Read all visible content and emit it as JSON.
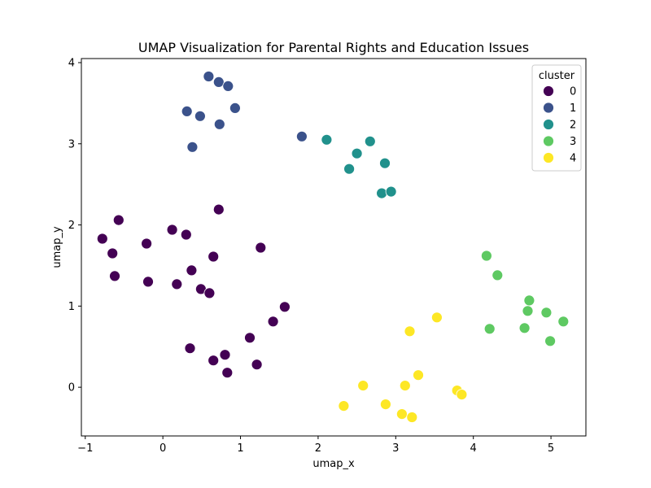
{
  "chart_data": {
    "type": "scatter",
    "title": "UMAP Visualization for Parental Rights and Education Issues",
    "xlabel": "umap_x",
    "ylabel": "umap_y",
    "xlim": [
      -1.05,
      5.45
    ],
    "ylim": [
      -0.6,
      4.05
    ],
    "xticks": [
      -1,
      0,
      1,
      2,
      3,
      4,
      5
    ],
    "yticks": [
      0,
      1,
      2,
      3,
      4
    ],
    "grid": false,
    "legend": {
      "title": "cluster",
      "placement": "top-right"
    },
    "series": [
      {
        "name": "0",
        "color": "#440154",
        "points": [
          [
            -0.78,
            1.83
          ],
          [
            -0.65,
            1.65
          ],
          [
            -0.62,
            1.37
          ],
          [
            -0.57,
            2.06
          ],
          [
            -0.21,
            1.77
          ],
          [
            -0.19,
            1.3
          ],
          [
            0.12,
            1.94
          ],
          [
            0.18,
            1.27
          ],
          [
            0.3,
            1.88
          ],
          [
            0.37,
            1.44
          ],
          [
            0.49,
            1.21
          ],
          [
            0.6,
            1.16
          ],
          [
            0.65,
            1.61
          ],
          [
            0.72,
            2.19
          ],
          [
            1.26,
            1.72
          ],
          [
            1.57,
            0.99
          ],
          [
            1.42,
            0.81
          ],
          [
            1.12,
            0.61
          ],
          [
            0.35,
            0.48
          ],
          [
            0.65,
            0.33
          ],
          [
            0.8,
            0.4
          ],
          [
            0.83,
            0.18
          ],
          [
            1.21,
            0.28
          ]
        ]
      },
      {
        "name": "1",
        "color": "#3b528b",
        "points": [
          [
            0.59,
            3.83
          ],
          [
            0.72,
            3.76
          ],
          [
            0.84,
            3.71
          ],
          [
            0.31,
            3.4
          ],
          [
            0.48,
            3.34
          ],
          [
            0.93,
            3.44
          ],
          [
            0.73,
            3.24
          ],
          [
            0.38,
            2.96
          ],
          [
            1.79,
            3.09
          ]
        ]
      },
      {
        "name": "2",
        "color": "#21918c",
        "points": [
          [
            2.11,
            3.05
          ],
          [
            2.67,
            3.03
          ],
          [
            2.5,
            2.88
          ],
          [
            2.86,
            2.76
          ],
          [
            2.4,
            2.69
          ],
          [
            2.82,
            2.39
          ],
          [
            2.94,
            2.41
          ]
        ]
      },
      {
        "name": "3",
        "color": "#5ec962",
        "points": [
          [
            4.17,
            1.62
          ],
          [
            4.31,
            1.38
          ],
          [
            4.72,
            1.07
          ],
          [
            4.7,
            0.94
          ],
          [
            4.94,
            0.92
          ],
          [
            5.16,
            0.81
          ],
          [
            4.21,
            0.72
          ],
          [
            4.66,
            0.73
          ],
          [
            4.99,
            0.57
          ]
        ]
      },
      {
        "name": "4",
        "color": "#fde725",
        "points": [
          [
            3.53,
            0.86
          ],
          [
            3.18,
            0.69
          ],
          [
            2.58,
            0.02
          ],
          [
            3.12,
            0.02
          ],
          [
            3.29,
            0.15
          ],
          [
            3.79,
            -0.04
          ],
          [
            3.85,
            -0.09
          ],
          [
            2.33,
            -0.23
          ],
          [
            2.87,
            -0.21
          ],
          [
            3.08,
            -0.33
          ],
          [
            3.21,
            -0.37
          ]
        ]
      }
    ]
  }
}
